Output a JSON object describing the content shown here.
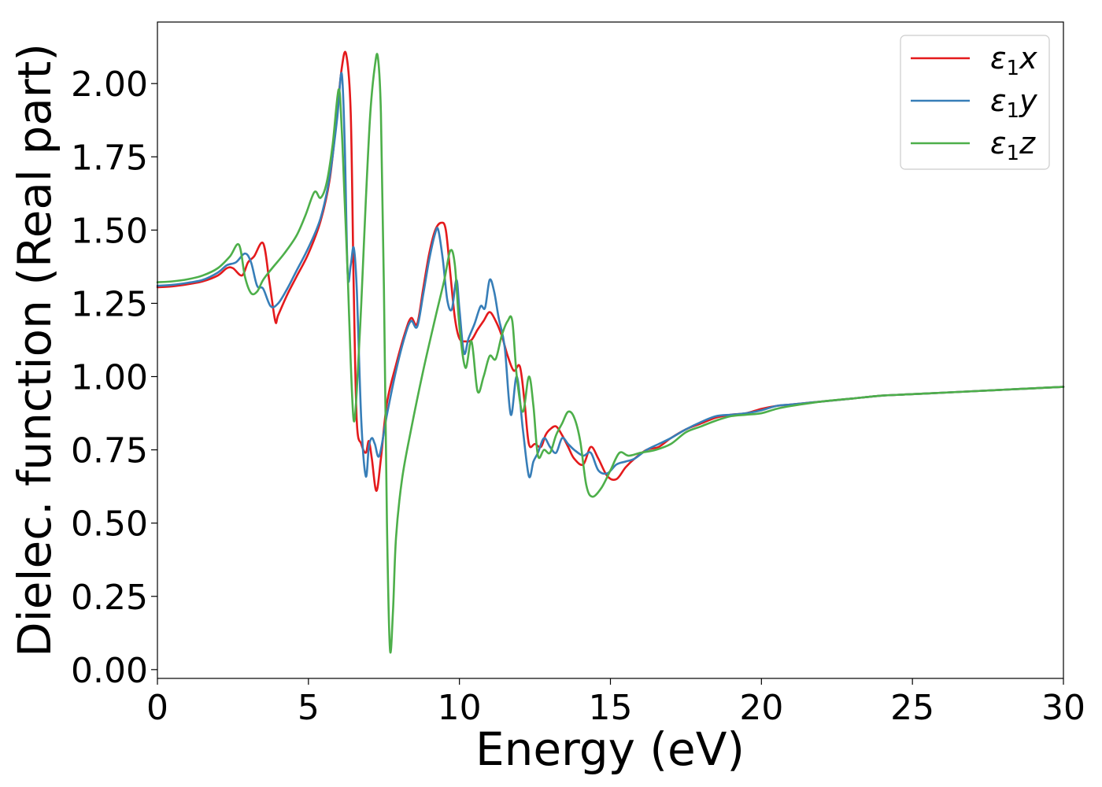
{
  "chart_data": {
    "type": "line",
    "title": "",
    "xlabel": "Energy (eV)",
    "ylabel": "Dielec. function (Real part)",
    "xlim": [
      0,
      30
    ],
    "ylim": [
      -0.03,
      2.21
    ],
    "xticks": [
      0,
      5,
      10,
      15,
      20,
      25,
      30
    ],
    "xtick_labels": [
      "0",
      "5",
      "10",
      "15",
      "20",
      "25",
      "30"
    ],
    "yticks": [
      0.0,
      0.25,
      0.5,
      0.75,
      1.0,
      1.25,
      1.5,
      1.75,
      2.0
    ],
    "ytick_labels": [
      "0.00",
      "0.25",
      "0.50",
      "0.75",
      "1.00",
      "1.25",
      "1.50",
      "1.75",
      "2.00"
    ],
    "grid": false,
    "legend_position": "top-right",
    "series": [
      {
        "name": "ε1x",
        "legend_base": "ε",
        "legend_sub": "1",
        "legend_suffix": "x",
        "color": "#e41a1c",
        "x": [
          0,
          0.5,
          1,
          1.5,
          2,
          2.3,
          2.5,
          2.8,
          3.0,
          3.2,
          3.5,
          3.7,
          3.9,
          4.0,
          4.3,
          4.6,
          5.0,
          5.4,
          5.7,
          5.9,
          6.1,
          6.25,
          6.4,
          6.5,
          6.6,
          6.75,
          6.9,
          7.0,
          7.1,
          7.25,
          7.4,
          7.6,
          7.9,
          8.2,
          8.4,
          8.6,
          8.8,
          9.0,
          9.2,
          9.4,
          9.55,
          9.7,
          9.85,
          10.0,
          10.2,
          10.4,
          10.6,
          10.8,
          11.0,
          11.2,
          11.4,
          11.6,
          11.8,
          12.0,
          12.15,
          12.3,
          12.5,
          12.7,
          12.85,
          13.0,
          13.2,
          13.4,
          13.6,
          13.8,
          14.1,
          14.35,
          14.6,
          14.9,
          15.2,
          15.5,
          15.8,
          16.2,
          16.6,
          17.0,
          17.5,
          18.0,
          18.5,
          19.0,
          19.5,
          20.0,
          20.5,
          21.0,
          22.0,
          23.0,
          24.0,
          25.0,
          26.0,
          27.0,
          28.0,
          29.0,
          30.0
        ],
        "y": [
          1.305,
          1.308,
          1.315,
          1.325,
          1.345,
          1.37,
          1.37,
          1.345,
          1.39,
          1.41,
          1.455,
          1.33,
          1.19,
          1.21,
          1.28,
          1.34,
          1.42,
          1.53,
          1.67,
          1.85,
          2.05,
          2.1,
          1.9,
          1.3,
          0.85,
          0.77,
          0.74,
          0.78,
          0.72,
          0.61,
          0.72,
          0.91,
          1.04,
          1.15,
          1.2,
          1.18,
          1.3,
          1.42,
          1.5,
          1.525,
          1.5,
          1.35,
          1.2,
          1.13,
          1.12,
          1.125,
          1.16,
          1.19,
          1.22,
          1.19,
          1.14,
          1.07,
          1.02,
          1.035,
          0.92,
          0.77,
          0.77,
          0.76,
          0.8,
          0.82,
          0.83,
          0.8,
          0.76,
          0.72,
          0.7,
          0.76,
          0.72,
          0.66,
          0.65,
          0.69,
          0.72,
          0.75,
          0.76,
          0.79,
          0.82,
          0.84,
          0.86,
          0.87,
          0.875,
          0.89,
          0.9,
          0.905,
          0.915,
          0.925,
          0.935,
          0.94,
          0.945,
          0.95,
          0.955,
          0.96,
          0.965
        ]
      },
      {
        "name": "ε1y",
        "legend_base": "ε",
        "legend_sub": "1",
        "legend_suffix": "y",
        "color": "#377eb8",
        "x": [
          0,
          0.5,
          1,
          1.5,
          2,
          2.3,
          2.6,
          2.9,
          3.1,
          3.3,
          3.5,
          3.75,
          4.0,
          4.3,
          4.6,
          5.0,
          5.4,
          5.7,
          5.95,
          6.1,
          6.2,
          6.3,
          6.4,
          6.5,
          6.6,
          6.75,
          6.9,
          7.0,
          7.1,
          7.2,
          7.35,
          7.6,
          7.9,
          8.2,
          8.4,
          8.6,
          8.8,
          9.0,
          9.2,
          9.3,
          9.45,
          9.6,
          9.75,
          9.9,
          10.0,
          10.15,
          10.3,
          10.5,
          10.7,
          10.85,
          11.0,
          11.15,
          11.3,
          11.5,
          11.7,
          11.9,
          12.1,
          12.3,
          12.45,
          12.6,
          12.8,
          13.0,
          13.2,
          13.4,
          13.6,
          13.8,
          14.1,
          14.35,
          14.6,
          14.9,
          15.2,
          15.5,
          15.8,
          16.2,
          16.6,
          17.0,
          17.5,
          18.0,
          18.5,
          19.0,
          19.5,
          20.0,
          20.5,
          21.0,
          22.0,
          23.0,
          24.0,
          25.0,
          26.0,
          27.0,
          28.0,
          29.0,
          30.0
        ],
        "y": [
          1.31,
          1.313,
          1.32,
          1.33,
          1.355,
          1.38,
          1.39,
          1.42,
          1.39,
          1.31,
          1.3,
          1.24,
          1.25,
          1.3,
          1.36,
          1.44,
          1.54,
          1.68,
          1.88,
          2.035,
          1.8,
          1.35,
          1.38,
          1.44,
          1.3,
          0.85,
          0.66,
          0.76,
          0.79,
          0.77,
          0.73,
          0.87,
          1.02,
          1.14,
          1.19,
          1.17,
          1.28,
          1.4,
          1.49,
          1.5,
          1.4,
          1.26,
          1.23,
          1.33,
          1.23,
          1.08,
          1.13,
          1.18,
          1.24,
          1.235,
          1.33,
          1.29,
          1.2,
          1.1,
          0.87,
          1.0,
          0.82,
          0.66,
          0.71,
          0.74,
          0.79,
          0.76,
          0.74,
          0.79,
          0.77,
          0.75,
          0.73,
          0.74,
          0.68,
          0.67,
          0.7,
          0.71,
          0.72,
          0.75,
          0.77,
          0.79,
          0.82,
          0.845,
          0.865,
          0.87,
          0.875,
          0.885,
          0.9,
          0.905,
          0.915,
          0.925,
          0.935,
          0.94,
          0.945,
          0.95,
          0.955,
          0.96,
          0.965
        ]
      },
      {
        "name": "ε1z",
        "legend_base": "ε",
        "legend_sub": "1",
        "legend_suffix": "z",
        "color": "#4daf4a",
        "x": [
          0,
          0.5,
          1,
          1.5,
          2,
          2.4,
          2.7,
          2.9,
          3.1,
          3.3,
          3.5,
          3.8,
          4.2,
          4.6,
          4.9,
          5.2,
          5.4,
          5.6,
          5.8,
          6.0,
          6.1,
          6.2,
          6.3,
          6.4,
          6.5,
          6.6,
          6.75,
          6.9,
          7.05,
          7.2,
          7.3,
          7.4,
          7.5,
          7.6,
          7.7,
          7.8,
          7.9,
          8.1,
          8.4,
          8.8,
          9.2,
          9.5,
          9.7,
          9.85,
          10.0,
          10.2,
          10.4,
          10.6,
          10.8,
          11.0,
          11.2,
          11.4,
          11.6,
          11.75,
          11.9,
          12.1,
          12.3,
          12.45,
          12.6,
          12.8,
          13.0,
          13.2,
          13.4,
          13.6,
          13.8,
          14.0,
          14.2,
          14.4,
          14.7,
          15.0,
          15.3,
          15.6,
          16.0,
          16.5,
          17.0,
          17.5,
          18.0,
          18.5,
          19.0,
          19.5,
          20.0,
          20.5,
          21.0,
          22.0,
          23.0,
          24.0,
          25.0,
          26.0,
          27.0,
          28.0,
          29.0,
          30.0
        ],
        "y": [
          1.322,
          1.325,
          1.332,
          1.345,
          1.37,
          1.41,
          1.45,
          1.34,
          1.285,
          1.29,
          1.33,
          1.37,
          1.42,
          1.48,
          1.55,
          1.63,
          1.61,
          1.66,
          1.79,
          1.98,
          1.85,
          1.6,
          1.35,
          1.05,
          0.85,
          0.95,
          1.25,
          1.6,
          1.9,
          2.06,
          2.09,
          1.9,
          1.3,
          0.5,
          0.07,
          0.2,
          0.45,
          0.65,
          0.82,
          1.02,
          1.2,
          1.33,
          1.43,
          1.38,
          1.17,
          1.03,
          1.12,
          0.95,
          1.0,
          1.07,
          1.06,
          1.14,
          1.19,
          1.19,
          1.0,
          0.88,
          1.0,
          0.9,
          0.73,
          0.75,
          0.74,
          0.8,
          0.84,
          0.88,
          0.86,
          0.78,
          0.63,
          0.59,
          0.62,
          0.68,
          0.74,
          0.73,
          0.74,
          0.75,
          0.77,
          0.81,
          0.83,
          0.85,
          0.865,
          0.87,
          0.875,
          0.89,
          0.9,
          0.915,
          0.925,
          0.935,
          0.94,
          0.945,
          0.95,
          0.955,
          0.96,
          0.965
        ]
      }
    ]
  }
}
